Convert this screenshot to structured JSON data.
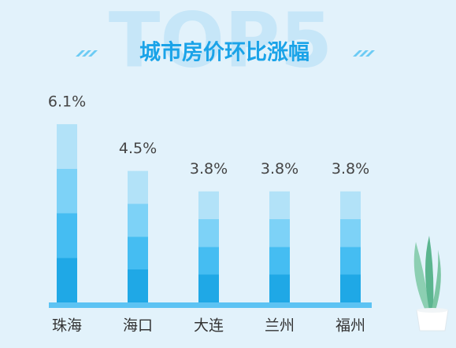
{
  "chart_data": {
    "type": "bar",
    "title": "城市房价环比涨幅",
    "watermark": "TOP5",
    "categories": [
      "珠海",
      "海口",
      "大连",
      "兰州",
      "福州"
    ],
    "values": [
      6.1,
      4.5,
      3.8,
      3.8,
      3.8
    ],
    "value_labels": [
      "6.1%",
      "4.5%",
      "3.8%",
      "3.8%",
      "3.8%"
    ],
    "colors": [
      "#1fa8e6",
      "#45bdf2",
      "#7dd2f7",
      "#b2e2f8"
    ]
  }
}
